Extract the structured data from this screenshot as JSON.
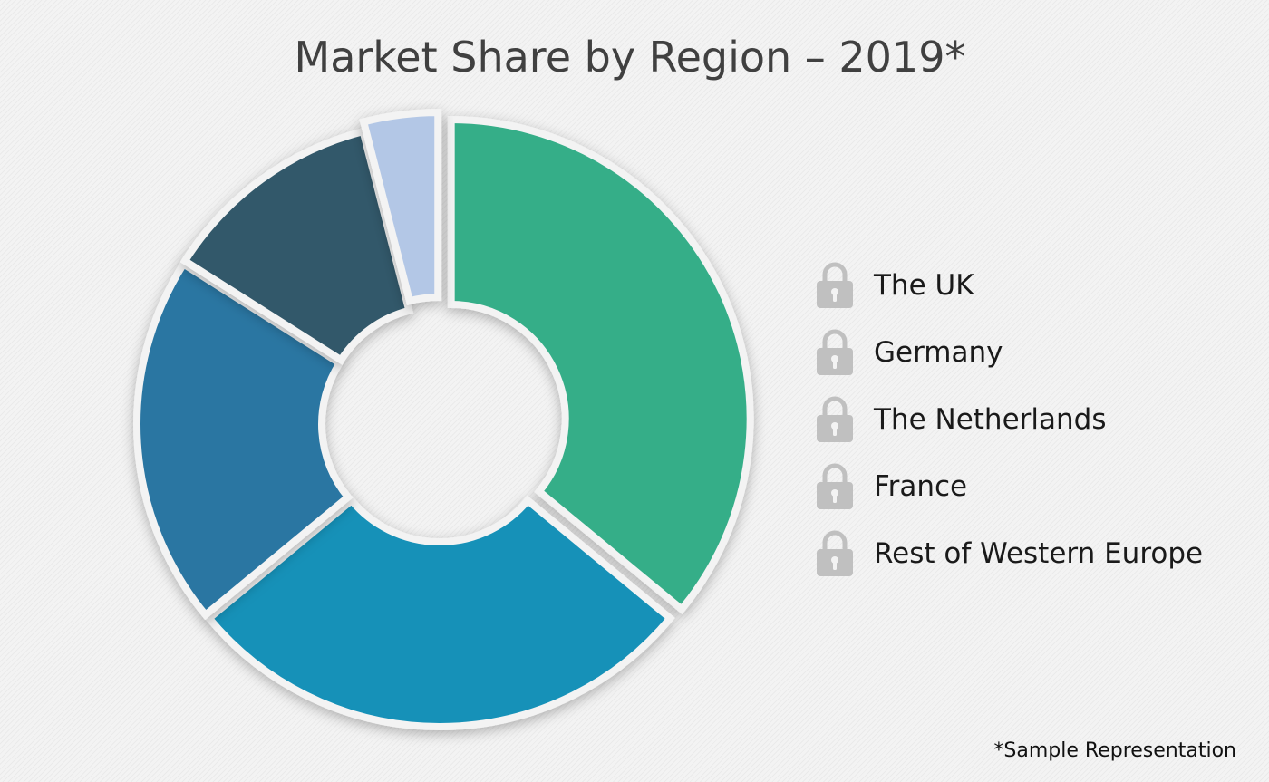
{
  "chart_data": {
    "type": "pie",
    "title": "Market Share by Region – 2019*",
    "categories": [
      "The UK",
      "Germany",
      "The Netherlands",
      "France",
      "Rest of Western Europe"
    ],
    "values": [
      36,
      28,
      20,
      12,
      4
    ],
    "colors": [
      "#35ae88",
      "#1491b8",
      "#2c76a2",
      "#33596a",
      "#b3c7e6"
    ],
    "legend": {
      "position": "right",
      "items": [
        {
          "label": "The UK",
          "icon": "lock-icon"
        },
        {
          "label": "Germany",
          "icon": "lock-icon"
        },
        {
          "label": "The Netherlands",
          "icon": "lock-icon"
        },
        {
          "label": "France",
          "icon": "lock-icon"
        },
        {
          "label": "Rest of Western Europe",
          "icon": "lock-icon"
        }
      ]
    }
  },
  "footnote": "*Sample Representation"
}
